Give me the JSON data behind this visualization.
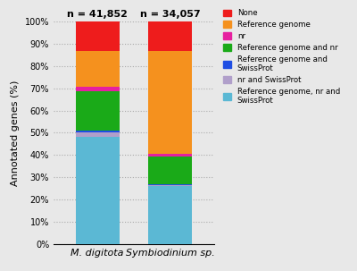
{
  "categories": [
    "M. digitota",
    "Symbiodinium sp."
  ],
  "n_labels": [
    "n = 41,852",
    "n = 34,057"
  ],
  "segments": [
    {
      "label": "Reference genome, nr and\nSwissProt",
      "color": "#5bb8d4",
      "values": [
        48.0,
        26.0
      ]
    },
    {
      "label": "nr and SwissProt",
      "color": "#b09fca",
      "values": [
        2.0,
        0.3
      ]
    },
    {
      "label": "Reference genome and\nSwissProt",
      "color": "#1f4ee3",
      "values": [
        0.8,
        0.4
      ]
    },
    {
      "label": "Reference genome and nr",
      "color": "#1aaa18",
      "values": [
        18.0,
        12.5
      ]
    },
    {
      "label": "nr",
      "color": "#e620a0",
      "values": [
        2.0,
        1.5
      ]
    },
    {
      "label": "Reference genome",
      "color": "#f5911e",
      "values": [
        16.0,
        46.3
      ]
    },
    {
      "label": "None",
      "color": "#ee1c1c",
      "values": [
        13.2,
        13.0
      ]
    }
  ],
  "ylabel": "Annotated genes (%)",
  "ylim": [
    0,
    100
  ],
  "yticks": [
    0,
    10,
    20,
    30,
    40,
    50,
    60,
    70,
    80,
    90,
    100
  ],
  "ytick_labels": [
    "0%",
    "10%",
    "20%",
    "30%",
    "40%",
    "50%",
    "60%",
    "70%",
    "80%",
    "90%",
    "100%"
  ],
  "bg_color": "#e8e8e8",
  "bar_width": 0.6,
  "legend_labels": [
    "None",
    "Reference genome",
    "nr",
    "Reference genome and nr",
    "Reference genome and\nSwissProt",
    "nr and SwissProt",
    "Reference genome, nr and\nSwissProt"
  ],
  "legend_colors": [
    "#ee1c1c",
    "#f5911e",
    "#e620a0",
    "#1aaa18",
    "#1f4ee3",
    "#b09fca",
    "#5bb8d4"
  ]
}
